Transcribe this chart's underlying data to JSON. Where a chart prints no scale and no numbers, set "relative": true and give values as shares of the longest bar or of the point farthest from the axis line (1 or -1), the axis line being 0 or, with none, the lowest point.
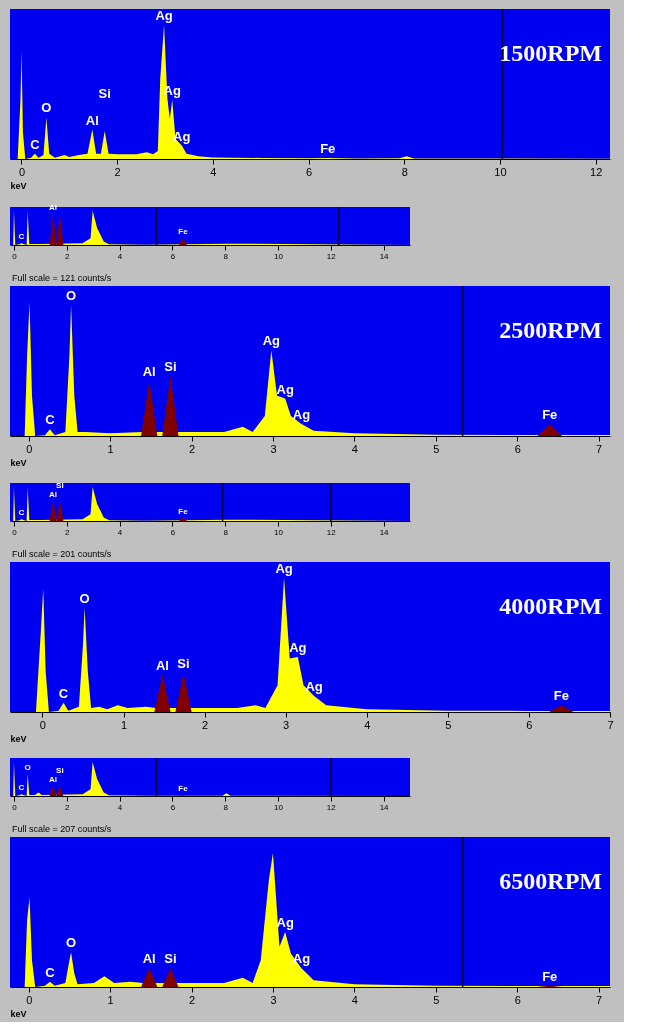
{
  "chart_data": [
    {
      "type": "area",
      "title": "1500RPM",
      "xlabel": "keV",
      "relative": true,
      "xlim": [
        -0.24,
        12.3
      ],
      "xticks": [
        0,
        2,
        4,
        6,
        8,
        10,
        12
      ],
      "series": [
        {
          "color": "#ffff00",
          "x": [
            -0.24,
            -0.08,
            -0.02,
            0,
            0.03,
            0.08,
            0.2,
            0.28,
            0.36,
            0.46,
            0.52,
            0.58,
            0.7,
            0.9,
            1.0,
            1.2,
            1.38,
            1.48,
            1.56,
            1.66,
            1.74,
            1.82,
            2.0,
            2.4,
            2.62,
            2.75,
            2.85,
            2.9,
            2.98,
            3.05,
            3.1,
            3.15,
            3.22,
            3.35,
            3.45,
            3.7,
            4,
            5,
            6,
            6.4,
            7,
            7.9,
            8.05,
            8.2,
            10,
            12.3
          ],
          "values": [
            0,
            0,
            0.45,
            0.81,
            0.2,
            0,
            0.01,
            0.04,
            0.01,
            0.03,
            0.31,
            0.04,
            0.01,
            0.03,
            0.015,
            0.03,
            0.04,
            0.22,
            0.04,
            0.04,
            0.21,
            0.04,
            0.035,
            0.035,
            0.05,
            0.035,
            0.06,
            0.6,
            1,
            0.45,
            0.3,
            0.44,
            0.15,
            0.1,
            0.04,
            0.02,
            0.012,
            0.008,
            0.005,
            0.008,
            0.004,
            0.005,
            0.02,
            0.004,
            0.003,
            0.002
          ]
        }
      ],
      "ref_lines": [
        {
          "axis": "x",
          "value": 10.05,
          "color": "#000040"
        }
      ],
      "annotations": [
        {
          "text": "C",
          "x": 0.28,
          "y": 0.04
        },
        {
          "text": "O",
          "x": 0.52,
          "y": 0.31
        },
        {
          "text": "Al",
          "x": 1.48,
          "y": 0.22
        },
        {
          "text": "Si",
          "x": 1.74,
          "y": 0.21
        },
        {
          "text": "Ag",
          "x": 2.98,
          "y": 1
        },
        {
          "text": "Ag",
          "x": 3.15,
          "y": 0.44
        },
        {
          "text": "Ag",
          "x": 3.35,
          "y": 0.1
        },
        {
          "text": "Fe",
          "x": 6.4,
          "y": 0.008
        }
      ]
    },
    {
      "type": "area",
      "relative": true,
      "xlim": [
        -0.15,
        15
      ],
      "xticks": [
        0,
        2,
        4,
        6,
        8,
        10,
        12,
        14
      ],
      "series": [
        {
          "color": "#ffff00",
          "x": [
            -0.15,
            -0.03,
            0,
            0.05,
            0.2,
            0.28,
            0.4,
            0.48,
            0.52,
            0.58,
            1.0,
            2.6,
            2.9,
            2.98,
            3.15,
            3.4,
            3.6,
            5,
            8.05,
            15
          ],
          "values": [
            0,
            0,
            1,
            0,
            0.02,
            0.05,
            0.02,
            0,
            1,
            0.03,
            0.03,
            0.05,
            0.2,
            1,
            0.5,
            0.1,
            0.02,
            0.01,
            0.04,
            0
          ]
        },
        {
          "color": "#800000",
          "x": [
            1.35,
            1.48,
            1.6,
            1.74,
            1.87,
            6.25,
            6.4,
            6.55
          ],
          "values": [
            0,
            0.9,
            0,
            0.9,
            0,
            0,
            0.2,
            0
          ]
        }
      ],
      "ref_lines": [
        {
          "axis": "x",
          "value": 5.4,
          "color": "#000040"
        },
        {
          "axis": "x",
          "value": 12.3,
          "color": "#000040"
        }
      ],
      "annotations": [
        {
          "text": "C",
          "x": 0.28,
          "y": 0.05
        },
        {
          "text": "Al",
          "x": 1.48,
          "y": 0.9
        },
        {
          "text": "Fe",
          "x": 6.4,
          "y": 0.2
        }
      ]
    },
    {
      "type": "area",
      "title": "2500RPM",
      "xlabel": "keV",
      "relative": true,
      "xlim": [
        -0.23,
        7.14
      ],
      "xticks": [
        0,
        1,
        2,
        3,
        4,
        5,
        6,
        7
      ],
      "series": [
        {
          "color": "#ffff00",
          "x": [
            -0.23,
            -0.05,
            -0.02,
            0.01,
            0.04,
            0.08,
            0.2,
            0.26,
            0.32,
            0.45,
            0.5,
            0.52,
            0.56,
            0.6,
            0.7,
            1.0,
            1.4,
            1.9,
            2.4,
            2.63,
            2.75,
            2.9,
            2.98,
            3.05,
            3.15,
            3.22,
            3.35,
            3.5,
            4,
            5,
            6,
            7.14
          ],
          "values": [
            0,
            0,
            0.6,
            1,
            0.3,
            0,
            0.005,
            0.05,
            0.005,
            0.03,
            0.6,
            0.98,
            0.3,
            0.03,
            0.03,
            0.02,
            0.03,
            0.03,
            0.03,
            0.07,
            0.03,
            0.15,
            0.64,
            0.3,
            0.28,
            0.15,
            0.09,
            0.04,
            0.02,
            0.01,
            0.008,
            0.008
          ]
        },
        {
          "color": "#800000",
          "x": [
            1.38,
            1.48,
            1.58,
            1.64,
            1.74,
            1.84,
            6.25,
            6.4,
            6.55
          ],
          "values": [
            0,
            0.41,
            0,
            0,
            0.45,
            0,
            0,
            0.09,
            0
          ]
        }
      ],
      "ref_lines": [
        {
          "axis": "x",
          "value": 5.33,
          "color": "#000040"
        }
      ],
      "annotations": [
        "Full scale = 121 counts/s",
        {
          "text": "C",
          "x": 0.26,
          "y": 0.05
        },
        {
          "text": "O",
          "x": 0.52,
          "y": 0.98
        },
        {
          "text": "Al",
          "x": 1.48,
          "y": 0.41
        },
        {
          "text": "Si",
          "x": 1.74,
          "y": 0.45
        },
        {
          "text": "Ag",
          "x": 2.98,
          "y": 0.64
        },
        {
          "text": "Ag",
          "x": 3.15,
          "y": 0.28
        },
        {
          "text": "Ag",
          "x": 3.35,
          "y": 0.09
        },
        {
          "text": "Fe",
          "x": 6.4,
          "y": 0.09
        }
      ]
    },
    {
      "type": "area",
      "relative": true,
      "xlim": [
        -0.15,
        15
      ],
      "xticks": [
        0,
        2,
        4,
        6,
        8,
        10,
        12,
        14
      ],
      "series": [
        {
          "color": "#ffff00",
          "x": [
            -0.15,
            -0.03,
            0,
            0.05,
            0.2,
            0.28,
            0.4,
            0.48,
            0.52,
            0.58,
            1.0,
            2.6,
            2.9,
            2.98,
            3.15,
            3.4,
            3.6,
            5,
            8.05,
            15
          ],
          "values": [
            0,
            0,
            1,
            0,
            0.02,
            0.05,
            0.02,
            0,
            1,
            0.03,
            0.03,
            0.05,
            0.2,
            1,
            0.5,
            0.1,
            0.02,
            0.01,
            0.04,
            0
          ]
        },
        {
          "color": "#800000",
          "x": [
            1.35,
            1.48,
            1.6,
            1.74,
            1.87,
            6.25,
            6.4,
            6.55
          ],
          "values": [
            0,
            0.6,
            0,
            0.6,
            0,
            0,
            0.1,
            0
          ]
        }
      ],
      "ref_lines": [
        {
          "axis": "x",
          "value": 7.9,
          "color": "#000040"
        },
        {
          "axis": "x",
          "value": 12.0,
          "color": "#000040"
        }
      ],
      "annotations": [
        {
          "text": "C",
          "x": 0.28,
          "y": 0.05
        },
        {
          "text": "Al",
          "x": 1.48,
          "y": 0.6
        },
        {
          "text": "Si",
          "x": 1.74,
          "y": 0.6
        },
        {
          "text": "Fe",
          "x": 6.4,
          "y": 0.1
        }
      ]
    },
    {
      "type": "area",
      "title": "4000RPM",
      "xlabel": "keV",
      "relative": true,
      "xlim": [
        -0.4,
        7.0
      ],
      "xticks": [
        0,
        1,
        2,
        3,
        4,
        5,
        6,
        7
      ],
      "series": [
        {
          "color": "#ffff00",
          "x": [
            -0.4,
            -0.08,
            -0.02,
            0.01,
            0.04,
            0.08,
            0.2,
            0.26,
            0.32,
            0.45,
            0.5,
            0.52,
            0.56,
            0.6,
            0.7,
            0.8,
            0.93,
            1.05,
            1.28,
            1.4,
            1.9,
            2.4,
            2.63,
            2.75,
            2.9,
            2.98,
            3.05,
            3.15,
            3.22,
            3.35,
            3.5,
            4,
            5,
            6,
            7.0
          ],
          "values": [
            0,
            0,
            0.6,
            0.92,
            0.3,
            0,
            0.01,
            0.07,
            0.01,
            0.04,
            0.5,
            0.78,
            0.3,
            0.03,
            0.04,
            0.02,
            0.05,
            0.03,
            0.04,
            0.03,
            0.03,
            0.03,
            0.05,
            0.03,
            0.2,
            1,
            0.4,
            0.41,
            0.2,
            0.12,
            0.05,
            0.02,
            0.01,
            0.008,
            0.008
          ]
        },
        {
          "color": "#800000",
          "x": [
            1.38,
            1.48,
            1.58,
            1.64,
            1.74,
            1.84,
            6.25,
            6.4,
            6.55
          ],
          "values": [
            0,
            0.28,
            0,
            0,
            0.29,
            0,
            0,
            0.05,
            0
          ]
        }
      ],
      "annotations": [
        "Full scale = 201 counts/s",
        {
          "text": "C",
          "x": 0.26,
          "y": 0.07
        },
        {
          "text": "O",
          "x": 0.52,
          "y": 0.78
        },
        {
          "text": "Al",
          "x": 1.48,
          "y": 0.28
        },
        {
          "text": "Si",
          "x": 1.74,
          "y": 0.29
        },
        {
          "text": "Ag",
          "x": 2.98,
          "y": 1
        },
        {
          "text": "Ag",
          "x": 3.15,
          "y": 0.41
        },
        {
          "text": "Ag",
          "x": 3.35,
          "y": 0.12
        },
        {
          "text": "Fe",
          "x": 6.4,
          "y": 0.05
        }
      ]
    },
    {
      "type": "area",
      "relative": true,
      "xlim": [
        -0.15,
        15
      ],
      "xticks": [
        0,
        2,
        4,
        6,
        8,
        10,
        12,
        14
      ],
      "series": [
        {
          "color": "#ffff00",
          "x": [
            -0.15,
            -0.03,
            0,
            0.05,
            0.2,
            0.28,
            0.4,
            0.48,
            0.52,
            0.58,
            0.8,
            0.93,
            1.05,
            2.6,
            2.9,
            2.98,
            3.15,
            3.4,
            3.6,
            5,
            7.9,
            8.05,
            8.2,
            15
          ],
          "values": [
            0,
            0,
            1,
            0,
            0.02,
            0.05,
            0.02,
            0,
            0.65,
            0.03,
            0.03,
            0.1,
            0.03,
            0.05,
            0.2,
            1,
            0.5,
            0.1,
            0.02,
            0.01,
            0.01,
            0.08,
            0.01,
            0
          ]
        },
        {
          "color": "#800000",
          "x": [
            1.35,
            1.48,
            1.6,
            1.74,
            1.87,
            6.25,
            6.4,
            6.55
          ],
          "values": [
            0,
            0.3,
            0,
            0.3,
            0,
            0,
            0.03,
            0
          ]
        }
      ],
      "ref_lines": [
        {
          "axis": "x",
          "value": 5.4,
          "color": "#000040"
        },
        {
          "axis": "x",
          "value": 12.0,
          "color": "#000040"
        }
      ],
      "annotations": [
        {
          "text": "C",
          "x": 0.28,
          "y": 0.05
        },
        {
          "text": "O",
          "x": 0.52,
          "y": 0.65
        },
        {
          "text": "Al",
          "x": 1.48,
          "y": 0.3
        },
        {
          "text": "Si",
          "x": 1.74,
          "y": 0.3
        },
        {
          "text": "Fe",
          "x": 6.4,
          "y": 0.03
        }
      ]
    },
    {
      "type": "area",
      "title": "6500RPM",
      "xlabel": "keV",
      "relative": true,
      "xlim": [
        -0.23,
        7.14
      ],
      "xticks": [
        0,
        1,
        2,
        3,
        4,
        5,
        6,
        7
      ],
      "series": [
        {
          "color": "#ffff00",
          "x": [
            -0.23,
            -0.05,
            -0.02,
            0.01,
            0.04,
            0.08,
            0.2,
            0.26,
            0.32,
            0.45,
            0.5,
            0.52,
            0.56,
            0.6,
            0.8,
            0.93,
            1.05,
            1.25,
            1.4,
            1.9,
            2.4,
            2.63,
            2.75,
            2.85,
            2.95,
            3.0,
            3.08,
            3.15,
            3.22,
            3.35,
            3.5,
            4,
            5,
            6,
            7.14
          ],
          "values": [
            0,
            0,
            0.5,
            0.67,
            0.2,
            0,
            0.01,
            0.04,
            0.01,
            0.03,
            0.2,
            0.26,
            0.1,
            0.02,
            0.03,
            0.08,
            0.03,
            0.04,
            0.03,
            0.03,
            0.03,
            0.07,
            0.03,
            0.2,
            0.8,
            1,
            0.3,
            0.41,
            0.25,
            0.14,
            0.05,
            0.02,
            0.01,
            0.008,
            0.008
          ]
        },
        {
          "color": "#800000",
          "x": [
            1.38,
            1.48,
            1.58,
            1.64,
            1.74,
            1.84,
            6.25,
            6.4,
            6.55
          ],
          "values": [
            0,
            0.14,
            0,
            0,
            0.14,
            0,
            0,
            0.01,
            0
          ]
        }
      ],
      "ref_lines": [
        {
          "axis": "x",
          "value": 5.33,
          "color": "#000040"
        }
      ],
      "annotations": [
        "Full scale = 207 counts/s",
        {
          "text": "C",
          "x": 0.26,
          "y": 0.04
        },
        {
          "text": "O",
          "x": 0.52,
          "y": 0.26
        },
        {
          "text": "Al",
          "x": 1.48,
          "y": 0.14
        },
        {
          "text": "Si",
          "x": 1.74,
          "y": 0.14
        },
        {
          "text": "Ag",
          "x": 3.15,
          "y": 0.41
        },
        {
          "text": "Ag",
          "x": 3.35,
          "y": 0.14
        },
        {
          "text": "Fe",
          "x": 6.4,
          "y": 0.01
        }
      ]
    }
  ]
}
